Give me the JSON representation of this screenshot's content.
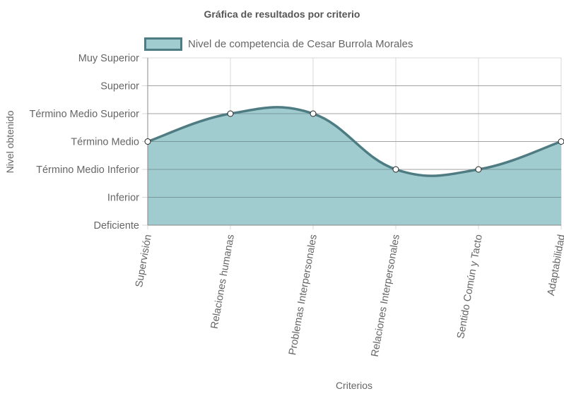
{
  "chart_data": {
    "type": "area",
    "title": "Gráfica de resultados por criterio",
    "xlabel": "Criterios",
    "ylabel": "Nivel obtenido",
    "y_levels": [
      "Deficiente",
      "Inferior",
      "Término Medio Inferior",
      "Término Medio",
      "Término Medio Superior",
      "Superior",
      "Muy Superior"
    ],
    "categories": [
      "Supervisión",
      "Relaciones humanas",
      "Problemas Interpersonales",
      "Relaciones Interpersonales",
      "Sentido Común y Tacto",
      "Adaptabilidad"
    ],
    "series": [
      {
        "name": "Nivel de competencia de Cesar Burrola Morales",
        "values": [
          3,
          4,
          4,
          2,
          2,
          3
        ],
        "value_labels": [
          "Término Medio",
          "Término Medio Superior",
          "Término Medio Superior",
          "Término Medio Inferior",
          "Término Medio Inferior",
          "Término Medio"
        ]
      }
    ],
    "ylim": [
      0,
      6
    ],
    "grid": true,
    "legend_position": "top",
    "colors": {
      "fill": "#a0cccf",
      "line": "#4f7c82",
      "grid": "#d9d9d9",
      "axis": "#888888",
      "point_fill": "#ffffff",
      "point_stroke": "#222222"
    }
  }
}
